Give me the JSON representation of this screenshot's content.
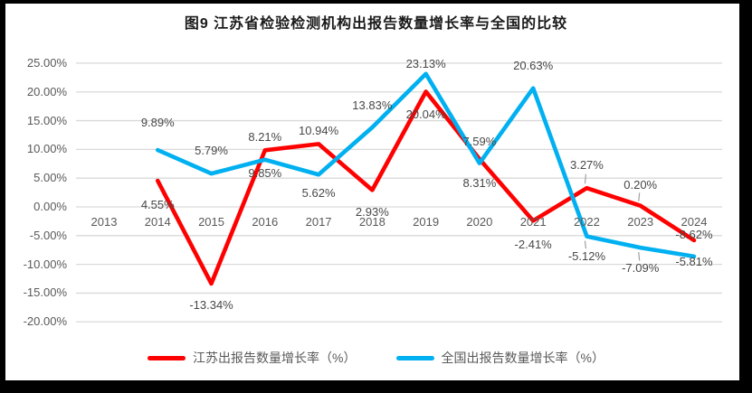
{
  "frame": {
    "border_color": "#000000",
    "canvas_color": "#ffffff"
  },
  "chart": {
    "title": "图9  江苏省检验检测机构出报告数量增长率与全国的比较",
    "legend": [
      {
        "label": "江苏出报告数量增长率（%）",
        "color": "#ff0000"
      },
      {
        "label": "全国出报告数量增长率（%）",
        "color": "#00b0f0"
      }
    ]
  },
  "chart_data": {
    "type": "line",
    "title": "图9  江苏省检验检测机构出报告数量增长率与全国的比较",
    "categories": [
      "2013",
      "2014",
      "2015",
      "2016",
      "2017",
      "2018",
      "2019",
      "2020",
      "2021",
      "2022",
      "2023",
      "2024"
    ],
    "y_ticks": [
      "25.00%",
      "20.00%",
      "15.00%",
      "10.00%",
      "5.00%",
      "0.00%",
      "-5.00%",
      "-10.00%",
      "-15.00%",
      "-20.00%"
    ],
    "ylim": [
      -20,
      25
    ],
    "y_step": 5,
    "grid": true,
    "legend_position": "bottom",
    "value_suffix": "%",
    "colors": {
      "gridline": "#d9d9d9",
      "axis_text": "#595959",
      "leader": "#a0a0a0"
    },
    "series": [
      {
        "name": "江苏出报告数量增长率（%）",
        "color": "#ff0000",
        "values": [
          null,
          4.55,
          -13.34,
          9.85,
          10.94,
          2.93,
          20.04,
          8.31,
          -2.41,
          3.27,
          0.2,
          -5.81
        ],
        "labels": [
          null,
          "4.55%",
          "-13.34%",
          "9.85%",
          "10.94%",
          "2.93%",
          "20.04%",
          "8.31%",
          "-2.41%",
          "3.27%",
          "0.20%",
          "-5.81%"
        ],
        "label_dy": [
          null,
          27,
          24,
          26,
          -14,
          25,
          26,
          27,
          27,
          -25,
          -23,
          24
        ],
        "leaders": [
          false,
          false,
          false,
          false,
          false,
          false,
          false,
          false,
          false,
          true,
          true,
          false
        ]
      },
      {
        "name": "全国出报告数量增长率（%）",
        "color": "#00b0f0",
        "values": [
          null,
          9.89,
          5.79,
          8.21,
          5.62,
          13.83,
          23.13,
          7.59,
          20.63,
          -5.12,
          -7.09,
          -8.62
        ],
        "labels": [
          null,
          "9.89%",
          "5.79%",
          "8.21%",
          "5.62%",
          "13.83%",
          "23.13%",
          "7.59%",
          "20.63%",
          "-5.12%",
          "-7.09%",
          "-8.62%"
        ],
        "label_dy": [
          null,
          -30,
          -25,
          -25,
          21,
          -24,
          -11,
          -24,
          -25,
          22,
          23,
          -24
        ],
        "leaders": [
          false,
          false,
          false,
          false,
          false,
          false,
          false,
          false,
          false,
          true,
          true,
          false
        ]
      }
    ]
  }
}
